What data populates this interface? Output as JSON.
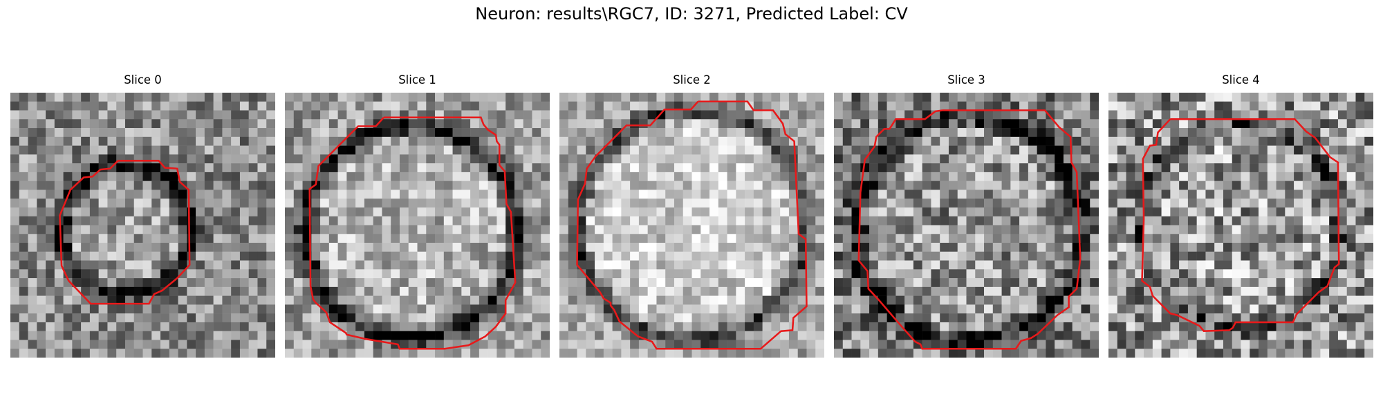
{
  "figure": {
    "title": "Neuron: results\\RGC7, ID: 3271, Predicted Label: CV"
  },
  "panels": [
    {
      "title": "Slice 0",
      "contour_color": "#e8191a",
      "image": "grayscale-microscopy-slice"
    },
    {
      "title": "Slice 1",
      "contour_color": "#e8191a",
      "image": "grayscale-microscopy-slice"
    },
    {
      "title": "Slice 2",
      "contour_color": "#e8191a",
      "image": "grayscale-microscopy-slice"
    },
    {
      "title": "Slice 3",
      "contour_color": "#e8191a",
      "image": "grayscale-microscopy-slice"
    },
    {
      "title": "Slice 4",
      "contour_color": "#e8191a",
      "image": "grayscale-microscopy-slice"
    }
  ]
}
